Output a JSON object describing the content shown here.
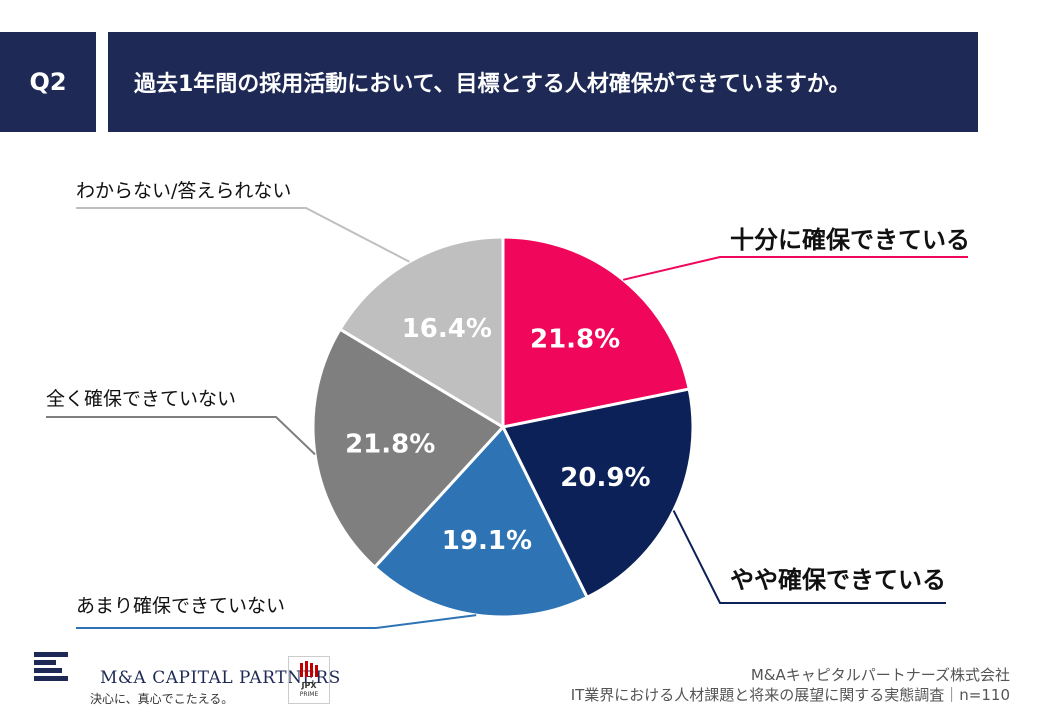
{
  "header": {
    "question_no": "Q2",
    "title": "過去1年間の採用活動において、目標とする人材確保ができていますか。"
  },
  "chart_data": {
    "type": "pie",
    "title": "過去1年間の採用活動において、目標とする人材確保ができていますか。",
    "unit": "%",
    "start_angle_deg": 0,
    "direction": "clockwise",
    "slices": [
      {
        "label": "十分に確保できている",
        "value": 21.8,
        "value_label": "21.8%",
        "color": "#f0065a"
      },
      {
        "label": "やや確保できている",
        "value": 20.9,
        "value_label": "20.9%",
        "color": "#0b2157"
      },
      {
        "label": "あまり確保できていない",
        "value": 19.1,
        "value_label": "19.1%",
        "color": "#2e74b5"
      },
      {
        "label": "全く確保できていない",
        "value": 21.8,
        "value_label": "21.8%",
        "color": "#7f7f7f"
      },
      {
        "label": "わからない/答えられない",
        "value": 16.4,
        "value_label": "16.4%",
        "color": "#bfbfbf"
      }
    ]
  },
  "footer": {
    "company": "M&Aキャピタルパートナーズ株式会社",
    "survey": "IT業界における人材課題と将来の展望に関する実態調査｜n=110",
    "logo_text": "M&A CAPITAL PARTNERS",
    "logo_tagline": "決心に、真心でこたえる。",
    "jpx_label": "JPX",
    "jpx_sub": "PRIME"
  }
}
